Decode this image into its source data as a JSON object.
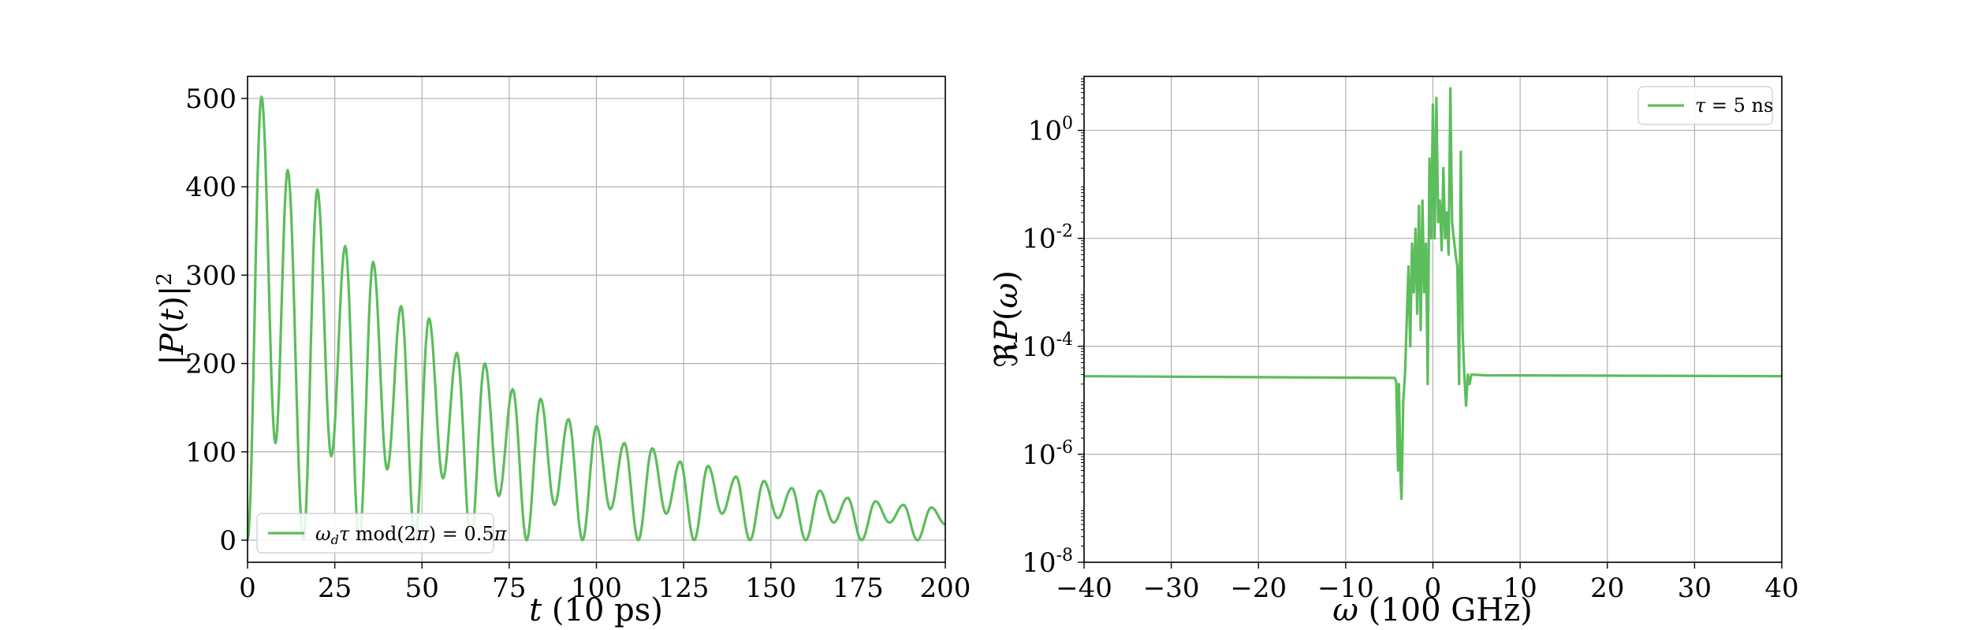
{
  "colors": {
    "series": "#5cbd5c",
    "grid": "#b0b0b0",
    "axes": "#000000"
  },
  "chart_data": [
    {
      "type": "line",
      "xlabel": "t (10 ps)",
      "ylabel": "|P(t)|²",
      "xlim": [
        0,
        200
      ],
      "ylim": [
        -25,
        525
      ],
      "x_ticks": [
        0,
        25,
        50,
        75,
        100,
        125,
        150,
        175,
        200
      ],
      "x_tick_labels": [
        "0",
        "25",
        "50",
        "75",
        "100",
        "125",
        "150",
        "175",
        "200"
      ],
      "y_ticks": [
        0,
        100,
        200,
        300,
        400,
        500
      ],
      "y_tick_labels": [
        "0",
        "100",
        "200",
        "300",
        "400",
        "500"
      ],
      "grid": true,
      "legend": {
        "placement": "lower-left",
        "entries": [
          "ωdτ mod(2π) = 0.5π"
        ]
      },
      "series": [
        {
          "name": "ωdτ mod(2π) = 0.5π",
          "color": "#5cbd5c",
          "peaks": [
            {
              "x": 4,
              "y": 502
            },
            {
              "x": 11.5,
              "y": 419
            },
            {
              "x": 20,
              "y": 397
            },
            {
              "x": 28,
              "y": 333
            },
            {
              "x": 36,
              "y": 315
            },
            {
              "x": 44,
              "y": 265
            },
            {
              "x": 52,
              "y": 251
            },
            {
              "x": 60,
              "y": 212
            },
            {
              "x": 68,
              "y": 200
            },
            {
              "x": 76,
              "y": 171
            },
            {
              "x": 84,
              "y": 160
            },
            {
              "x": 92,
              "y": 137
            },
            {
              "x": 100,
              "y": 129
            },
            {
              "x": 108,
              "y": 110
            },
            {
              "x": 116,
              "y": 104
            },
            {
              "x": 124,
              "y": 89
            },
            {
              "x": 132,
              "y": 84
            },
            {
              "x": 140,
              "y": 72
            },
            {
              "x": 148,
              "y": 67
            },
            {
              "x": 156,
              "y": 59
            },
            {
              "x": 164,
              "y": 56
            },
            {
              "x": 172,
              "y": 48
            },
            {
              "x": 180,
              "y": 44
            },
            {
              "x": 188,
              "y": 40
            },
            {
              "x": 196,
              "y": 37
            }
          ],
          "troughs": [
            {
              "x": 8,
              "y": 110
            },
            {
              "x": 16,
              "y": 0
            },
            {
              "x": 24,
              "y": 95
            },
            {
              "x": 32,
              "y": 0
            },
            {
              "x": 40,
              "y": 80
            },
            {
              "x": 48,
              "y": 0
            },
            {
              "x": 56,
              "y": 70
            },
            {
              "x": 64,
              "y": 0
            },
            {
              "x": 72,
              "y": 50
            },
            {
              "x": 80,
              "y": 0
            },
            {
              "x": 88,
              "y": 40
            },
            {
              "x": 96,
              "y": 0
            },
            {
              "x": 104,
              "y": 35
            },
            {
              "x": 112,
              "y": 0
            },
            {
              "x": 120,
              "y": 30
            },
            {
              "x": 128,
              "y": 0
            },
            {
              "x": 136,
              "y": 30
            },
            {
              "x": 144,
              "y": 0
            },
            {
              "x": 152,
              "y": 25
            },
            {
              "x": 160,
              "y": 0
            },
            {
              "x": 168,
              "y": 20
            },
            {
              "x": 176,
              "y": 0
            },
            {
              "x": 184,
              "y": 20
            },
            {
              "x": 192,
              "y": 0
            },
            {
              "x": 200,
              "y": 18
            }
          ]
        }
      ]
    },
    {
      "type": "line",
      "xlabel": "ω (100 GHz)",
      "ylabel": "ℜP(ω)",
      "xlim": [
        -40,
        40
      ],
      "yscale": "log",
      "ylim_exp": [
        -8,
        1
      ],
      "x_ticks": [
        -40,
        -30,
        -20,
        -10,
        0,
        10,
        20,
        30,
        40
      ],
      "x_tick_labels": [
        "−40",
        "−30",
        "−20",
        "−10",
        "0",
        "10",
        "20",
        "30",
        "40"
      ],
      "y_ticks_exp": [
        -8,
        -6,
        -4,
        -2,
        0
      ],
      "y_tick_labels": [
        "10-8",
        "10-6",
        "10-4",
        "10-2",
        "100"
      ],
      "grid": true,
      "legend": {
        "placement": "upper-right",
        "entries": [
          "τ = 5 ns"
        ]
      },
      "series": [
        {
          "name": "τ = 5 ns",
          "color": "#5cbd5c",
          "points": [
            [
              -40,
              2.8e-05
            ],
            [
              -4.4,
              2.6e-05
            ],
            [
              -4.2,
              2.2e-05
            ],
            [
              -4.0,
              5e-07
            ],
            [
              -3.9,
              2e-05
            ],
            [
              -3.7,
              3e-07
            ],
            [
              -3.6,
              1.5e-07
            ],
            [
              -3.4,
              1e-05
            ],
            [
              -3.2,
              3e-05
            ],
            [
              -3.0,
              0.0003
            ],
            [
              -2.8,
              0.003
            ],
            [
              -2.6,
              0.0001
            ],
            [
              -2.4,
              0.008
            ],
            [
              -2.2,
              0.001
            ],
            [
              -2.0,
              0.015
            ],
            [
              -1.8,
              0.0004
            ],
            [
              -1.6,
              0.04
            ],
            [
              -1.4,
              0.0002
            ],
            [
              -1.2,
              0.05
            ],
            [
              -1.0,
              0.001
            ],
            [
              -0.8,
              0.008
            ],
            [
              -0.6,
              2e-05
            ],
            [
              -0.4,
              0.3
            ],
            [
              -0.2,
              0.01
            ],
            [
              0.0,
              3.0
            ],
            [
              0.2,
              0.01
            ],
            [
              0.4,
              4.0
            ],
            [
              0.6,
              0.02
            ],
            [
              0.8,
              0.05
            ],
            [
              1.0,
              0.006
            ],
            [
              1.2,
              0.2
            ],
            [
              1.4,
              0.01
            ],
            [
              1.6,
              0.03
            ],
            [
              1.8,
              0.005
            ],
            [
              2.0,
              6.0
            ],
            [
              2.2,
              0.02
            ],
            [
              2.4,
              0.01
            ],
            [
              2.6,
              0.005
            ],
            [
              2.8,
              0.003
            ],
            [
              3.0,
              2e-05
            ],
            [
              3.2,
              0.4
            ],
            [
              3.4,
              0.0002
            ],
            [
              3.6,
              3e-05
            ],
            [
              3.8,
              8e-06
            ],
            [
              4.0,
              3e-05
            ],
            [
              4.2,
              2e-05
            ],
            [
              4.4,
              3e-05
            ],
            [
              6.0,
              2.9e-05
            ],
            [
              40,
              2.8e-05
            ]
          ]
        }
      ]
    }
  ]
}
